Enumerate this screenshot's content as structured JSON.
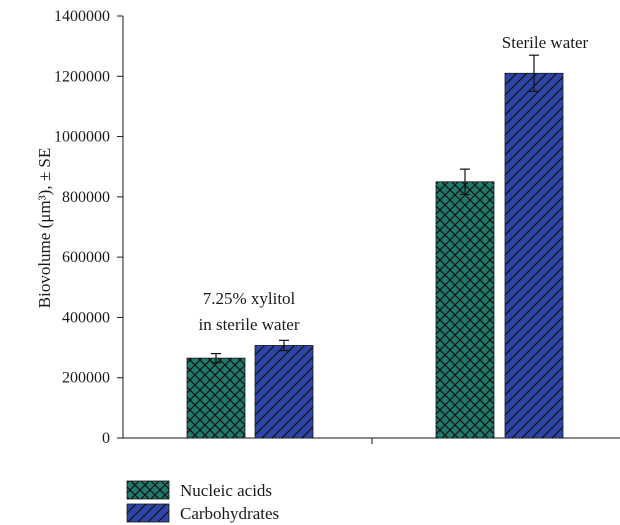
{
  "chart_data": {
    "type": "bar",
    "groups": [
      "7.25% xylitol in sterile water",
      "Sterile water"
    ],
    "group_annotations": [
      [
        "7.25% xylitol",
        "in sterile water"
      ],
      [
        "Sterile water"
      ]
    ],
    "series": [
      {
        "name": "Nucleic acids",
        "values": [
          265000,
          850000
        ],
        "errors": [
          15000,
          42000
        ],
        "color": "#1f7a6b",
        "pattern": "crosshatch"
      },
      {
        "name": "Carbohydrates",
        "values": [
          307000,
          1210000
        ],
        "errors": [
          17000,
          60000
        ],
        "color": "#2e45a8",
        "pattern": "diagonal"
      }
    ],
    "ylabel": "Biovolume (μm³), ± SE",
    "ylim": [
      0,
      1400000
    ],
    "yticks": [
      "0",
      "200000",
      "400000",
      "600000",
      "800000",
      "1000000",
      "1200000",
      "1400000"
    ],
    "legend_position": "bottom-left",
    "grid": false
  }
}
